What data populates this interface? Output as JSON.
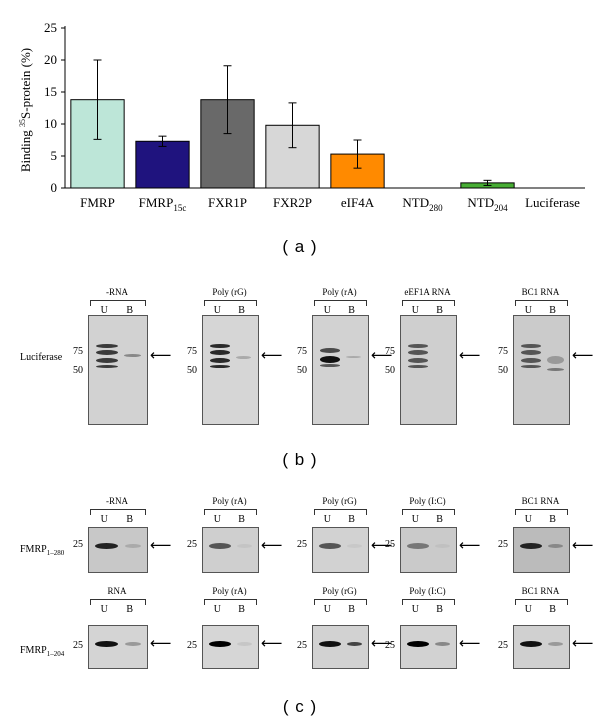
{
  "chart_data": {
    "type": "bar",
    "ylabel_parts": [
      "Binding ",
      "35",
      "S-protein (%)"
    ],
    "ylim": [
      0,
      25
    ],
    "yticks": [
      0,
      5,
      10,
      15,
      20,
      25
    ],
    "categories": [
      {
        "base": "FMRP",
        "sub": ""
      },
      {
        "base": "FMRP",
        "sub": "15c"
      },
      {
        "base": "FXR1P",
        "sub": ""
      },
      {
        "base": "FXR2P",
        "sub": ""
      },
      {
        "base": "eIF4A",
        "sub": ""
      },
      {
        "base": "NTD",
        "sub": "280"
      },
      {
        "base": "NTD",
        "sub": "204"
      },
      {
        "base": "Luciferase",
        "sub": ""
      }
    ],
    "values": [
      13.8,
      7.3,
      13.8,
      9.8,
      5.3,
      0,
      0.8,
      0
    ],
    "errors": [
      6.2,
      0.8,
      5.3,
      3.5,
      2.2,
      0,
      0.4,
      0
    ],
    "colors": [
      "#bde6d8",
      "#1f137e",
      "#696969",
      "#d7d7d7",
      "#ff8a00",
      "#ffffff",
      "#47ad34",
      "#ffffff"
    ]
  },
  "panels": {
    "a": "( a )",
    "b": "( b )",
    "c": "( c )"
  },
  "lanes": {
    "u": "U",
    "b": "B"
  },
  "mw": {
    "m75": "75",
    "m50": "50",
    "m25": "25"
  },
  "arrow": "⟵",
  "panel_b": {
    "row_label": "Luciferase",
    "blots": [
      "-RNA",
      "Poly (rG)",
      "Poly (rA)",
      "eEF1A RNA",
      "BC1 RNA"
    ]
  },
  "panel_c": {
    "row1": {
      "label_base": "FMRP",
      "label_sub": "1–280",
      "blots": [
        "-RNA",
        "Poly (rA)",
        "Poly (rG)",
        "Poly (I:C)",
        "BC1 RNA"
      ]
    },
    "row2": {
      "label_base": "FMRP",
      "label_sub": "1–204",
      "blots": [
        "RNA",
        "Poly (rA)",
        "Poly (rG)",
        "Poly (I:C)",
        "BC1 RNA"
      ]
    }
  }
}
